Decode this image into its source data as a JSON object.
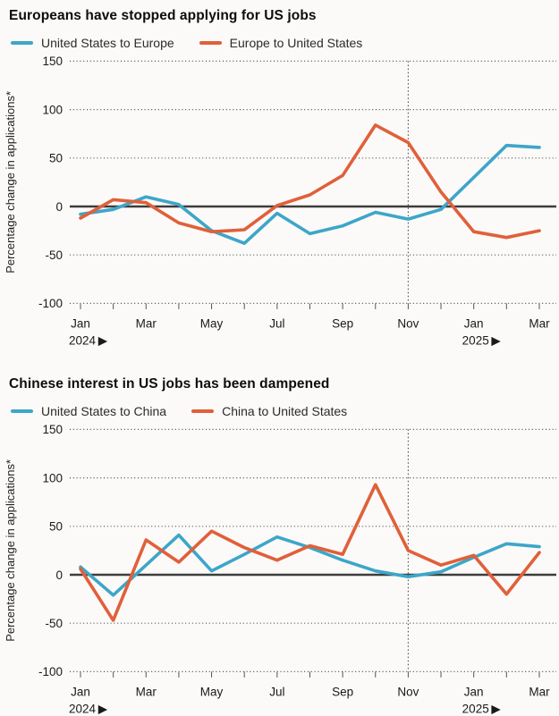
{
  "page": {
    "background": "#fbfaf8"
  },
  "charts": [
    {
      "title": "Europeans have stopped applying for US jobs",
      "legend": [
        {
          "label": "United States to Europe",
          "color": "#3da6c9"
        },
        {
          "label": "Europe to United States",
          "color": "#e0603a"
        }
      ],
      "chart_data": {
        "type": "line",
        "title": "Europeans have stopped applying for US jobs",
        "ylabel": "Percentage change in applications*",
        "ylim": [
          -100,
          150
        ],
        "yticks": [
          {
            "value": 150,
            "label": "150"
          },
          {
            "value": 100,
            "label": "100"
          },
          {
            "value": 50,
            "label": "50"
          },
          {
            "value": 0,
            "label": "0"
          },
          {
            "value": -50,
            "label": "-50"
          },
          {
            "value": -100,
            "label": "-100"
          }
        ],
        "x": [
          "Jan 2024",
          "Feb 2024",
          "Mar 2024",
          "Apr 2024",
          "May 2024",
          "Jun 2024",
          "Jul 2024",
          "Aug 2024",
          "Sep 2024",
          "Oct 2024",
          "Nov 2024",
          "Dec 2024",
          "Jan 2025",
          "Feb 2025",
          "Mar 2025"
        ],
        "x_ticks": [
          {
            "index": 0,
            "label": "Jan",
            "year": "2024 ▶"
          },
          {
            "index": 2,
            "label": "Mar"
          },
          {
            "index": 4,
            "label": "May"
          },
          {
            "index": 6,
            "label": "Jul"
          },
          {
            "index": 8,
            "label": "Sep"
          },
          {
            "index": 10,
            "label": "Nov"
          },
          {
            "index": 12,
            "label": "Jan",
            "year": "2025 ▶"
          },
          {
            "index": 14,
            "label": "Mar"
          }
        ],
        "reference_line_x_index": 10,
        "grid": true,
        "legend_position": "top",
        "series": [
          {
            "name": "United States to Europe",
            "color": "#3da6c9",
            "values": [
              -8,
              -3,
              10,
              2,
              -25,
              -38,
              -7,
              -28,
              -20,
              -6,
              -13,
              -3,
              30,
              63,
              61
            ]
          },
          {
            "name": "Europe to United States",
            "color": "#e0603a",
            "values": [
              -12,
              7,
              4,
              -17,
              -26,
              -24,
              1,
              12,
              32,
              84,
              66,
              15,
              -26,
              -32,
              -25
            ]
          }
        ]
      }
    },
    {
      "title": "Chinese interest in US jobs has been dampened",
      "legend": [
        {
          "label": "United States to China",
          "color": "#3da6c9"
        },
        {
          "label": "China to United States",
          "color": "#e0603a"
        }
      ],
      "chart_data": {
        "type": "line",
        "title": "Chinese interest in US jobs has been dampened",
        "ylabel": "Percentage change in applications*",
        "ylim": [
          -100,
          150
        ],
        "yticks": [
          {
            "value": 150,
            "label": "150"
          },
          {
            "value": 100,
            "label": "100"
          },
          {
            "value": 50,
            "label": "50"
          },
          {
            "value": 0,
            "label": "0"
          },
          {
            "value": -50,
            "label": "-50"
          },
          {
            "value": -100,
            "label": "-100"
          }
        ],
        "x": [
          "Jan 2024",
          "Feb 2024",
          "Mar 2024",
          "Apr 2024",
          "May 2024",
          "Jun 2024",
          "Jul 2024",
          "Aug 2024",
          "Sep 2024",
          "Oct 2024",
          "Nov 2024",
          "Dec 2024",
          "Jan 2025",
          "Feb 2025",
          "Mar 2025"
        ],
        "x_ticks": [
          {
            "index": 0,
            "label": "Jan",
            "year": "2024 ▶"
          },
          {
            "index": 2,
            "label": "Mar"
          },
          {
            "index": 4,
            "label": "May"
          },
          {
            "index": 6,
            "label": "Jul"
          },
          {
            "index": 8,
            "label": "Sep"
          },
          {
            "index": 10,
            "label": "Nov"
          },
          {
            "index": 12,
            "label": "Jan",
            "year": "2025 ▶"
          },
          {
            "index": 14,
            "label": "Mar"
          }
        ],
        "reference_line_x_index": 10,
        "grid": true,
        "legend_position": "top",
        "series": [
          {
            "name": "United States to China",
            "color": "#3da6c9",
            "values": [
              8,
              -21,
              10,
              41,
              4,
              21,
              39,
              28,
              15,
              4,
              -2,
              3,
              18,
              32,
              29
            ]
          },
          {
            "name": "China to United States",
            "color": "#e0603a",
            "values": [
              6,
              -47,
              36,
              13,
              45,
              28,
              15,
              30,
              21,
              93,
              25,
              10,
              20,
              -20,
              23
            ]
          }
        ]
      }
    }
  ]
}
